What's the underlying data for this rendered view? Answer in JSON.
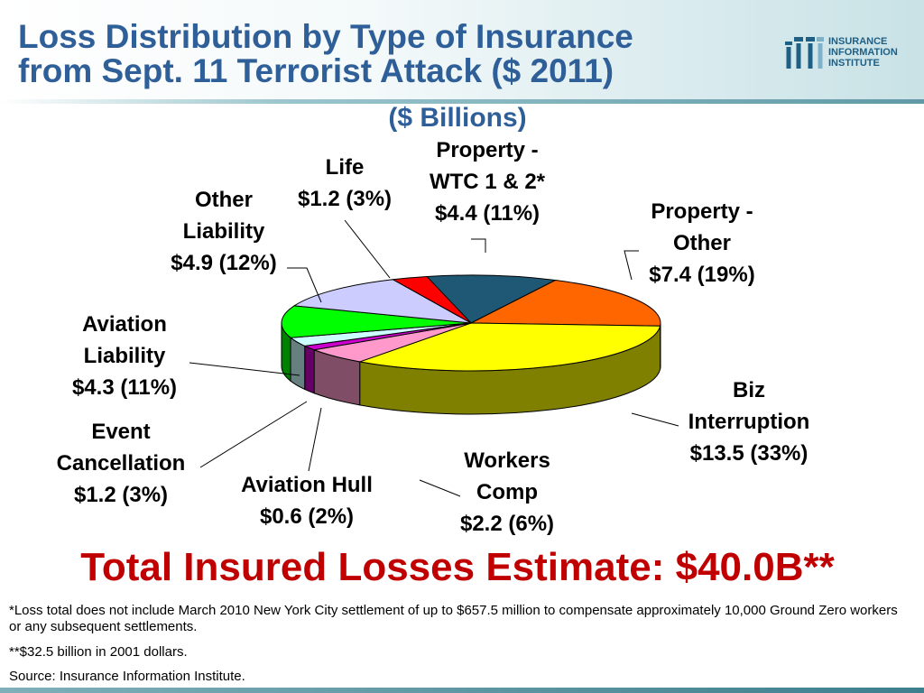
{
  "header": {
    "title_line1": "Loss Distribution by Type of Insurance",
    "title_line2": "from Sept. 11 Terrorist Attack ($ 2011)",
    "logo_lines": [
      "INSURANCE",
      "INFORMATION",
      "INSTITUTE"
    ],
    "title_color": "#2f5f98"
  },
  "chart_data": {
    "type": "pie",
    "title": "($ Billions)",
    "unit": "$ Billions",
    "slices": [
      {
        "name": [
          "Property -",
          "WTC 1 & 2*"
        ],
        "value": 4.4,
        "percent": 11,
        "value_label": "$4.4 (11%)",
        "color": "#1f5875"
      },
      {
        "name": [
          "Property -",
          "Other"
        ],
        "value": 7.4,
        "percent": 19,
        "value_label": "$7.4 (19%)",
        "color": "#ff6600"
      },
      {
        "name": [
          "Biz",
          "Interruption"
        ],
        "value": 13.5,
        "percent": 33,
        "value_label": "$13.5 (33%)",
        "color": "#ffff00"
      },
      {
        "name": [
          "Workers",
          "Comp"
        ],
        "value": 2.2,
        "percent": 6,
        "value_label": "$2.2 (6%)",
        "color": "#ff99cc"
      },
      {
        "name": [
          "Aviation Hull"
        ],
        "value": 0.6,
        "percent": 2,
        "value_label": "$0.6 (2%)",
        "color": "#cc00cc"
      },
      {
        "name": [
          "Event",
          "Cancellation"
        ],
        "value": 1.2,
        "percent": 3,
        "value_label": "$1.2 (3%)",
        "color": "#ccffff"
      },
      {
        "name": [
          "Aviation",
          "Liability"
        ],
        "value": 4.3,
        "percent": 11,
        "value_label": "$4.3 (11%)",
        "color": "#00ff00"
      },
      {
        "name": [
          "Other",
          "Liability"
        ],
        "value": 4.9,
        "percent": 12,
        "value_label": "$4.9 (12%)",
        "color": "#ccccff"
      },
      {
        "name": [
          "Life"
        ],
        "value": 1.2,
        "percent": 3,
        "value_label": "$1.2 (3%)",
        "color": "#ff0000"
      }
    ]
  },
  "total": "Total Insured Losses Estimate: $40.0B**",
  "notes": {
    "note1": "*Loss total does not include March 2010 New York City settlement of up to $657.5 million to compensate approximately 10,000 Ground Zero workers or any subsequent settlements.",
    "note2": "**$32.5 billion in 2001 dollars.",
    "source": "Source: Insurance Information Institute."
  }
}
